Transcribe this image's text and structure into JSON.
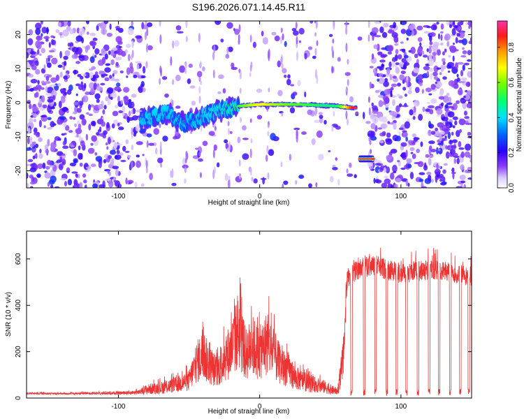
{
  "title": "S196.2026.071.14.45.R11",
  "chart_data": [
    {
      "type": "heatmap",
      "xlabel": "Height of straight line (km)",
      "ylabel": "Frequency (Hz)",
      "xlim": [
        -165,
        150
      ],
      "ylim": [
        -25,
        24
      ],
      "xticks": [
        -100,
        0,
        100
      ],
      "xtick_labels": [
        "-100",
        "0",
        "100"
      ],
      "yticks": [
        -20,
        -10,
        0,
        10,
        20
      ],
      "ytick_labels": [
        "-20",
        "-10",
        "0",
        "10",
        "20"
      ],
      "colorbar": {
        "label": "Normalized spectral amplitude",
        "range": [
          0.0,
          0.95
        ],
        "ticks": [
          0.0,
          0.2,
          0.4,
          0.6,
          0.8
        ],
        "tick_labels": [
          "0.0",
          "0.2",
          "0.4",
          "0.6",
          "0.8"
        ]
      },
      "signal_track": {
        "x": [
          -85,
          -75,
          -65,
          -55,
          -45,
          -35,
          -25,
          -15,
          0,
          15,
          30,
          45,
          55,
          65,
          68,
          75,
          80
        ],
        "y": [
          -5,
          -4,
          -3,
          -6,
          -5,
          -3,
          -2,
          -1,
          -0.5,
          -0.5,
          -0.5,
          -0.8,
          -1,
          -1.5,
          -1.5,
          -16.5,
          -16.5
        ],
        "peak_amplitude": [
          0.35,
          0.4,
          0.35,
          0.3,
          0.35,
          0.4,
          0.45,
          0.55,
          0.7,
          0.6,
          0.55,
          0.5,
          0.5,
          0.85,
          0.9,
          0.85,
          0.85
        ]
      }
    },
    {
      "type": "line",
      "xlabel": "Height of straight line (km)",
      "ylabel": "SNR (10 * v/v)",
      "xlim": [
        -165,
        150
      ],
      "ylim": [
        0,
        720
      ],
      "xticks": [
        -100,
        0,
        100
      ],
      "xtick_labels": [
        "-100",
        "0",
        "100"
      ],
      "yticks": [
        0,
        200,
        400,
        600
      ],
      "ytick_labels": [
        "0",
        "200",
        "400",
        "600"
      ],
      "series": [
        {
          "name": "SNR",
          "color": "#ee3333",
          "envelope_x": [
            -165,
            -140,
            -100,
            -85,
            -80,
            -70,
            -60,
            -50,
            -45,
            -40,
            -35,
            -30,
            -25,
            -20,
            -15,
            -10,
            -5,
            0,
            5,
            10,
            15,
            20,
            25,
            30,
            35,
            40,
            45,
            50,
            55,
            58,
            60,
            62,
            70,
            80,
            90,
            100,
            110,
            120,
            130,
            140,
            150
          ],
          "envelope_y": [
            25,
            22,
            28,
            35,
            60,
            70,
            90,
            120,
            240,
            300,
            220,
            180,
            280,
            330,
            480,
            300,
            360,
            310,
            380,
            300,
            220,
            200,
            140,
            120,
            100,
            90,
            80,
            60,
            40,
            200,
            300,
            560,
            600,
            620,
            600,
            580,
            590,
            600,
            590,
            580,
            570
          ],
          "dropouts_x": [
            65,
            74,
            82,
            90,
            97,
            104,
            112,
            120,
            127,
            135,
            142,
            148
          ]
        }
      ]
    }
  ]
}
